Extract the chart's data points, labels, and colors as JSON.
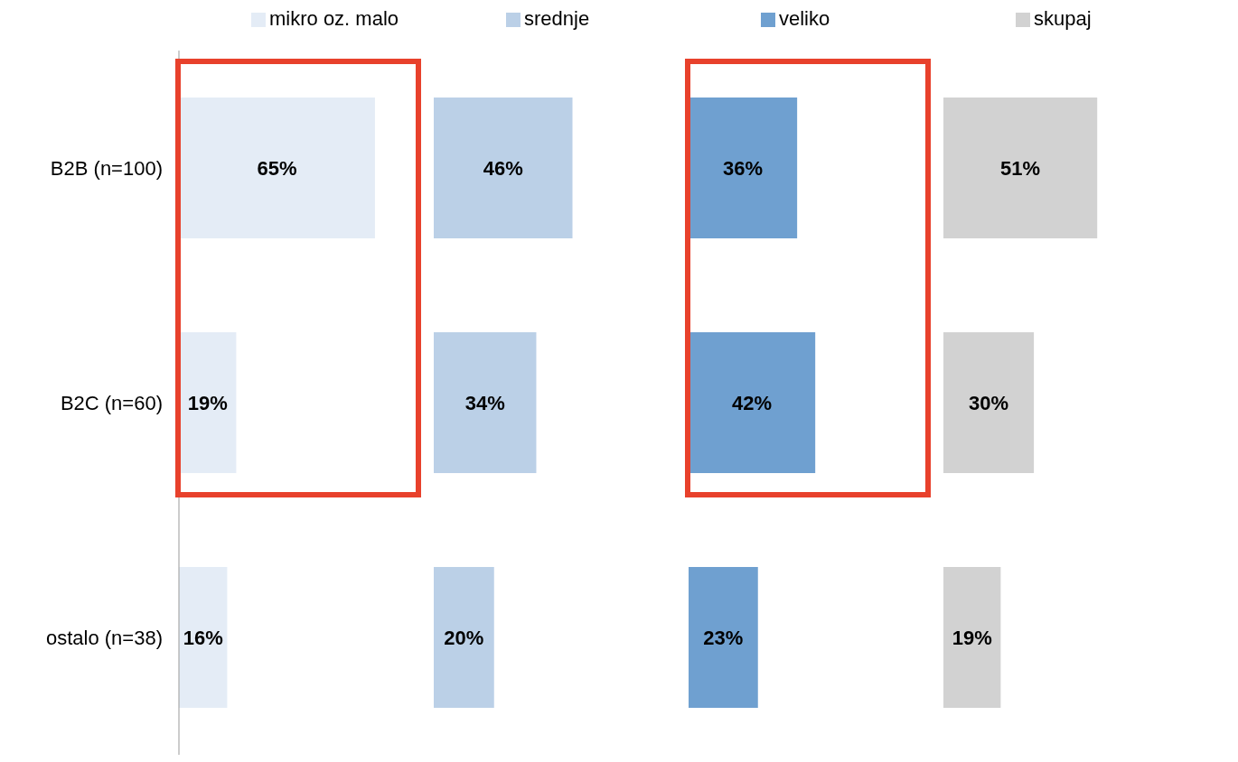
{
  "chart_data": [
    {
      "type": "bar",
      "orientation": "horizontal",
      "categories": [
        "B2B (n=100)",
        "B2C (n=60)",
        "ostalo (n=38)"
      ],
      "series": [
        {
          "name": "mikro oz. malo",
          "color": "#e4ecf6",
          "values": [
            65,
            19,
            16
          ],
          "value_labels": [
            "65%",
            "19%",
            "16%"
          ]
        }
      ],
      "legend": "top"
    },
    {
      "type": "bar",
      "orientation": "horizontal",
      "categories": [
        null,
        null,
        null
      ],
      "series": [
        {
          "name": "srednje",
          "color": "#bbd0e7",
          "values": [
            46,
            34,
            20
          ],
          "value_labels": [
            "46%",
            "34%",
            "20%"
          ]
        }
      ],
      "legend": "top"
    },
    {
      "type": "bar",
      "orientation": "horizontal",
      "categories": [
        null,
        null,
        null
      ],
      "series": [
        {
          "name": "veliko",
          "color": "#6fa0d0",
          "values": [
            36,
            42,
            23
          ],
          "value_labels": [
            "36%",
            "42%",
            "23%"
          ]
        }
      ],
      "legend": "top"
    },
    {
      "type": "bar",
      "orientation": "horizontal",
      "categories": [
        null,
        null,
        null
      ],
      "series": [
        {
          "name": "skupaj",
          "color": "#d2d2d2",
          "values": [
            51,
            30,
            19
          ],
          "value_labels": [
            "51%",
            "30%",
            "19%"
          ]
        }
      ],
      "legend": "top"
    }
  ]
}
